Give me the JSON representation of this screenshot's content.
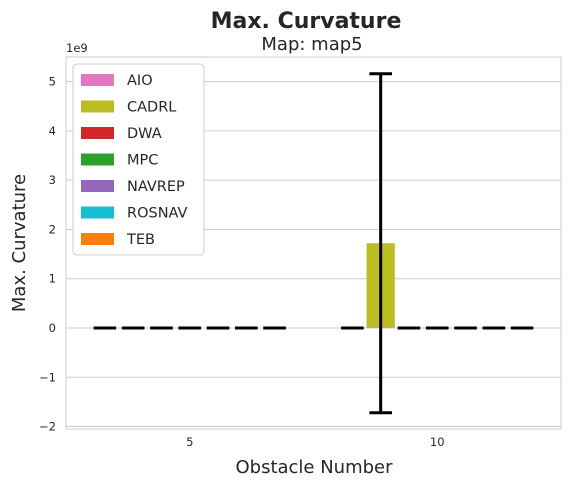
{
  "chart_data": {
    "type": "bar",
    "title": "Max. Curvature",
    "subtitle": "Map: map5",
    "xlabel": "Obstacle Number",
    "ylabel": "Max. Curvature",
    "y_scale_label": "1e9",
    "y_scale_factor": 1000000000,
    "categories": [
      "5",
      "10"
    ],
    "ylim": [
      -2.05,
      5.5
    ],
    "yticks": [
      -2,
      -1,
      0,
      1,
      2,
      3,
      4,
      5
    ],
    "ytick_labels": [
      "−2",
      "−1",
      "0",
      "1",
      "2",
      "3",
      "4",
      "5"
    ],
    "grid": true,
    "legend_position": "top-left",
    "series": [
      {
        "name": "AIO",
        "color": "#e377c2",
        "values": [
          0.0,
          0.0
        ],
        "error": [
          0.0,
          0.0
        ]
      },
      {
        "name": "CADRL",
        "color": "#bcbd22",
        "values": [
          0.0,
          1.72
        ],
        "error": [
          0.0,
          3.44
        ]
      },
      {
        "name": "DWA",
        "color": "#d62728",
        "values": [
          0.0,
          0.0
        ],
        "error": [
          0.0,
          0.0
        ]
      },
      {
        "name": "MPC",
        "color": "#2ca02c",
        "values": [
          0.0,
          0.0
        ],
        "error": [
          0.0,
          0.0
        ]
      },
      {
        "name": "NAVREP",
        "color": "#9467bd",
        "values": [
          0.0,
          0.0
        ],
        "error": [
          0.0,
          0.0
        ]
      },
      {
        "name": "ROSNAV",
        "color": "#17becf",
        "values": [
          0.0,
          0.0
        ],
        "error": [
          0.0,
          0.0
        ]
      },
      {
        "name": "TEB",
        "color": "#ff7f0e",
        "values": [
          0.0,
          0.0
        ],
        "error": [
          0.0,
          0.0
        ]
      }
    ]
  }
}
